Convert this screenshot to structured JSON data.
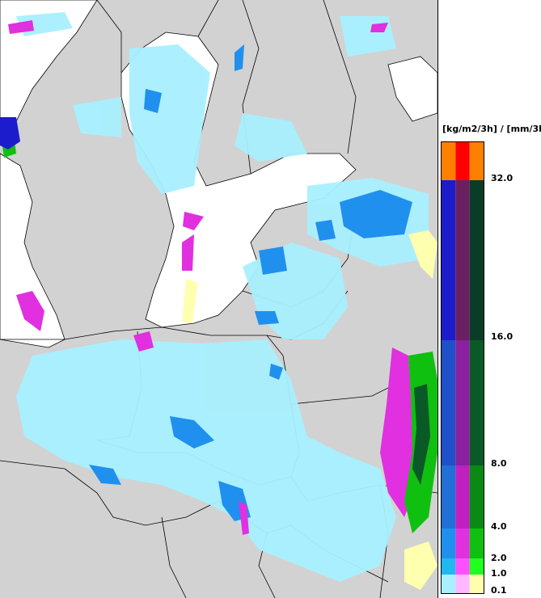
{
  "legend": {
    "title": "[kg/m2/3h] / [mm/3h]",
    "ticks": [
      "32.0",
      "16.0",
      "8.0",
      "4.0",
      "2.0",
      "1.0",
      "0.1"
    ],
    "columns": [
      [
        "#ff8000",
        "#1c1ccc",
        "#2050c8",
        "#2070d8",
        "#2090ee",
        "#20b8f0",
        "#a8f0ff"
      ],
      [
        "#ff0000",
        "#6a2060",
        "#8a20a0",
        "#c020c0",
        "#e030e0",
        "#ff50ff",
        "#ffb8ff"
      ],
      [
        "#ff8000",
        "#0a3c28",
        "#0a5a28",
        "#0a8a14",
        "#10c010",
        "#20ff20",
        "#ffffb0"
      ]
    ]
  },
  "map": {
    "land_color": "#d2d2d2",
    "sea_color": "#ffffff",
    "border_color": "#000000"
  }
}
